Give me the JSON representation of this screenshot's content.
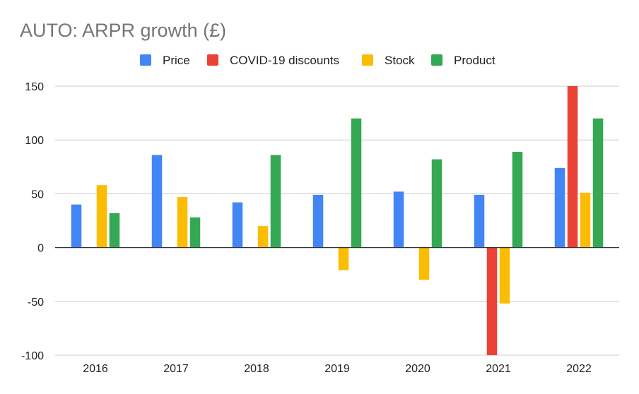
{
  "chart_data": {
    "type": "bar",
    "title": "AUTO: ARPR growth (£)",
    "xlabel": "",
    "ylabel": "",
    "categories": [
      "2016",
      "2017",
      "2018",
      "2019",
      "2020",
      "2021",
      "2022"
    ],
    "series": [
      {
        "name": "Price",
        "color": "#4285F4",
        "values": [
          40,
          86,
          42,
          49,
          52,
          49,
          74
        ]
      },
      {
        "name": "COVID-19 discounts",
        "color": "#EA4335",
        "values": [
          0,
          0,
          0,
          0,
          0,
          -100,
          150
        ]
      },
      {
        "name": "Stock",
        "color": "#FBBC04",
        "values": [
          58,
          47,
          20,
          -21,
          -30,
          -52,
          51
        ]
      },
      {
        "name": "Product",
        "color": "#34A853",
        "values": [
          32,
          28,
          86,
          120,
          82,
          89,
          120
        ]
      }
    ],
    "ylim": [
      -100,
      150
    ],
    "yticks": [
      150,
      100,
      50,
      0,
      -50,
      -100
    ],
    "ytick_labels": [
      "150",
      "100",
      "50",
      "0",
      "-50",
      "-100"
    ],
    "grid": true,
    "legend_position": "top"
  }
}
